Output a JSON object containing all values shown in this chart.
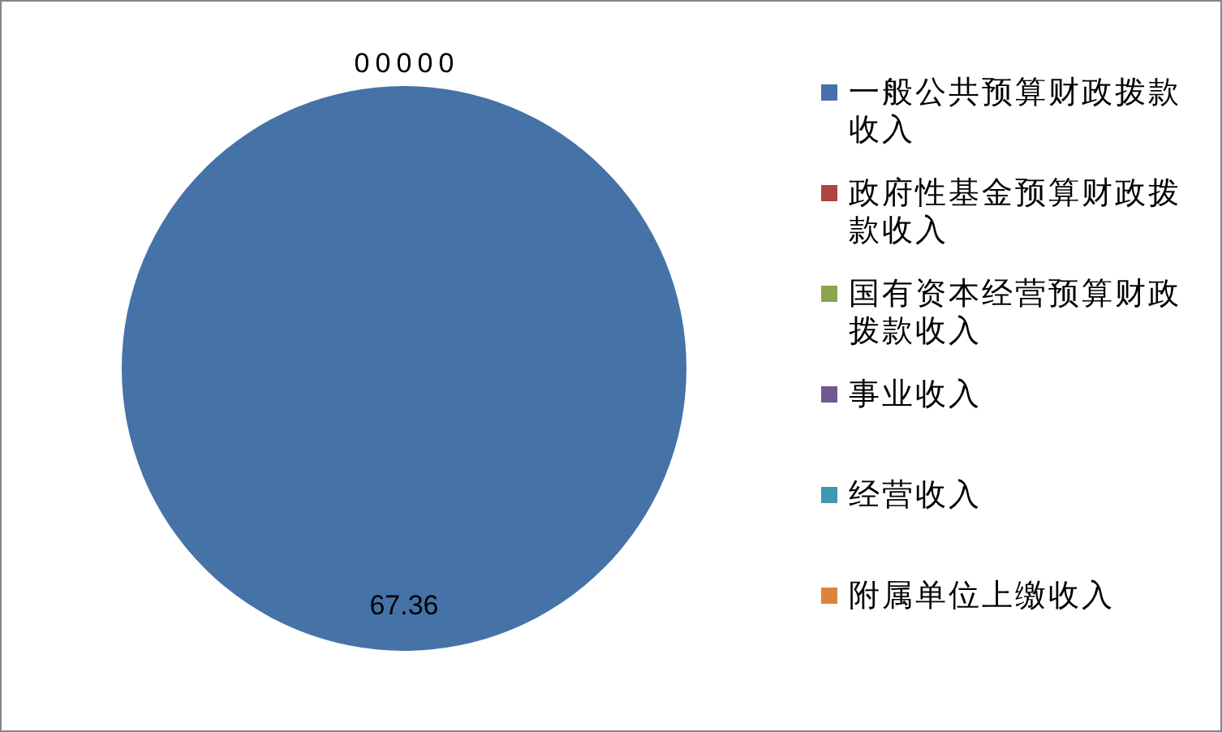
{
  "chart_data": {
    "type": "pie",
    "categories": [
      "一般公共预算财政拨款收入",
      "政府性基金预算财政拨款收入",
      "国有资本经营预算财政拨款收入",
      "事业收入",
      "经营收入",
      "附属单位上缴收入"
    ],
    "values": [
      67.36,
      0,
      0,
      0,
      0,
      0
    ],
    "value_labels": [
      "67.36",
      "0",
      "0",
      "0",
      "0",
      "0"
    ],
    "colors": [
      "#4572a7",
      "#aa4643",
      "#89a54e",
      "#71588f",
      "#4198af",
      "#db843d"
    ],
    "legend": "right"
  }
}
